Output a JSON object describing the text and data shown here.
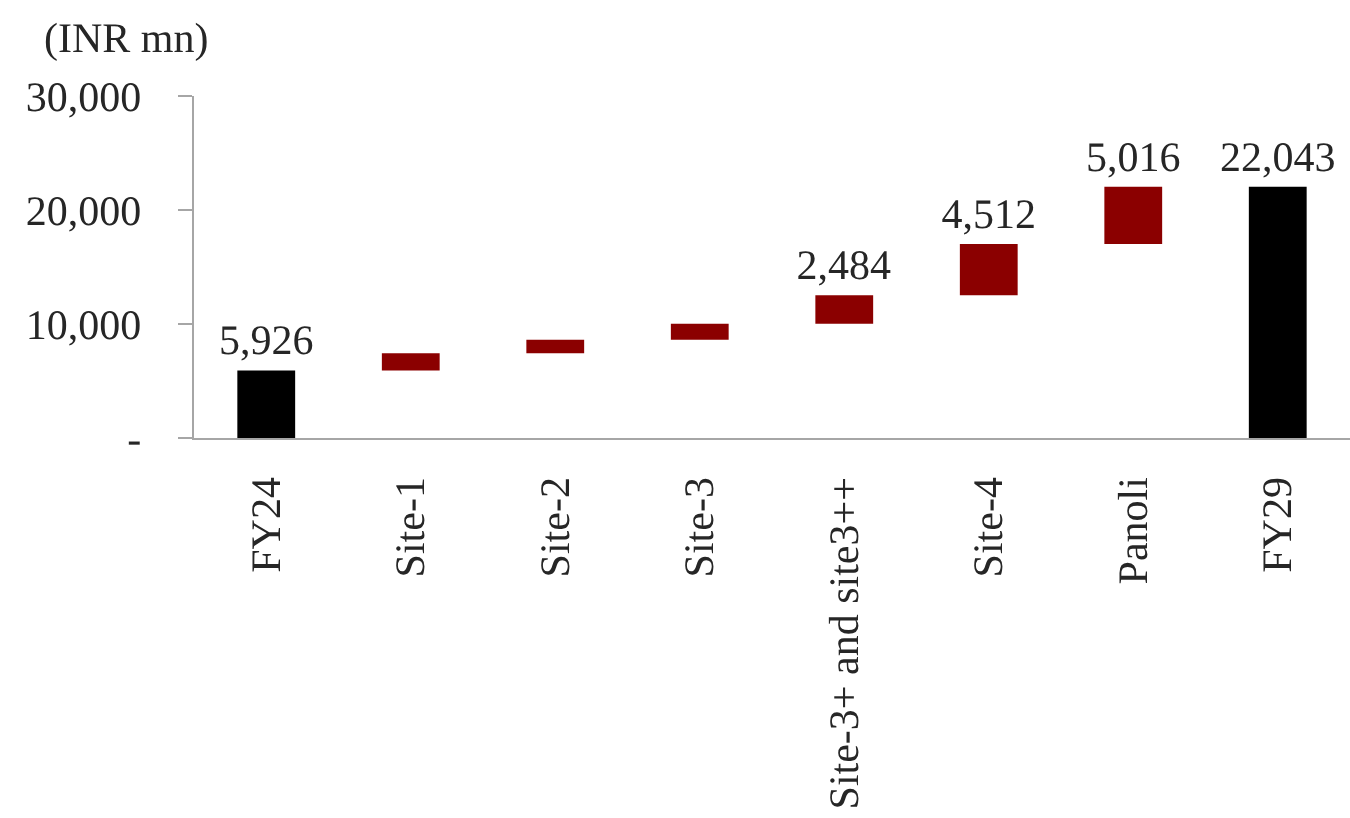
{
  "chart_data": {
    "type": "bar",
    "ylabel": "(INR mn)",
    "categories": [
      "FY24",
      "Site-1",
      "Site-2",
      "Site-3",
      "Site-3+ and site3++",
      "Site-4",
      "Panoli",
      "FY29"
    ],
    "values": [
      5926,
      1500,
      1200,
      1400,
      2484,
      4512,
      5016,
      22043
    ],
    "base": [
      0,
      5926,
      7426,
      8626,
      10031,
      12515,
      17027,
      0
    ],
    "colors": [
      "#000000",
      "#8b0000",
      "#8b0000",
      "#8b0000",
      "#8b0000",
      "#8b0000",
      "#8b0000",
      "#000000"
    ],
    "value_labels": [
      "5,926",
      null,
      null,
      null,
      "2,484",
      "4,512",
      "5,016",
      "22,043"
    ],
    "ylim": [
      0,
      30000
    ],
    "yticks": [
      {
        "value": 0,
        "label": "-"
      },
      {
        "value": 10000,
        "label": "10,000"
      },
      {
        "value": 20000,
        "label": "20,000"
      },
      {
        "value": 30000,
        "label": "30,000"
      }
    ]
  }
}
